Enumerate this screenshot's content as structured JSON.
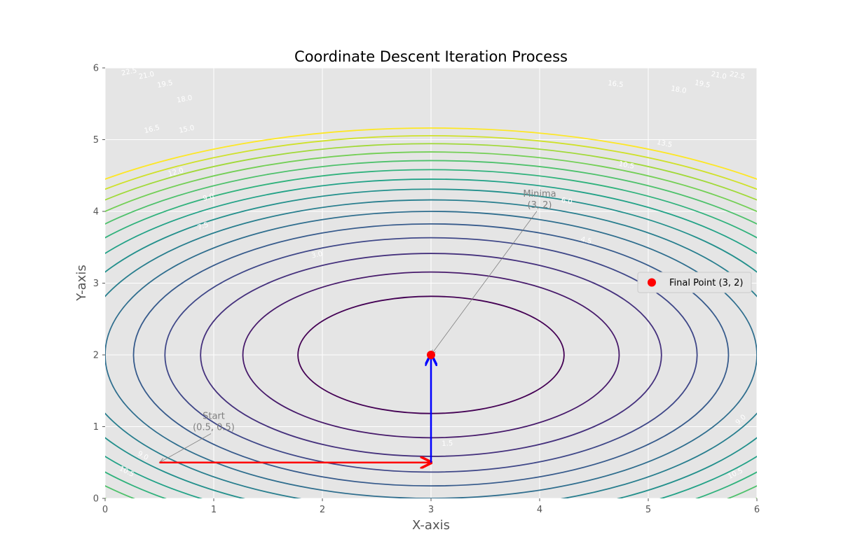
{
  "chart_data": {
    "type": "contour",
    "title": "Coordinate Descent Iteration Process",
    "xlabel": "X-axis",
    "ylabel": "Y-axis",
    "xlim": [
      0,
      6
    ],
    "ylim": [
      0,
      6
    ],
    "xticks": [
      "0",
      "1",
      "2",
      "3",
      "4",
      "5",
      "6"
    ],
    "yticks": [
      "0",
      "1",
      "2",
      "3",
      "4",
      "5",
      "6"
    ],
    "grid": true,
    "function": {
      "center": [
        3,
        2
      ],
      "x_weight": 1,
      "y_weight": 2.25
    },
    "contour_levels": [
      1.5,
      3.0,
      4.5,
      6.0,
      7.5,
      9.0,
      10.5,
      12.0,
      13.5,
      15.0,
      16.5,
      18.0,
      19.5,
      21.0,
      22.5
    ],
    "contour_labels": [
      {
        "text": "1.5",
        "x": 3.15,
        "y": 0.77
      },
      {
        "text": "3.0",
        "x": 1.95,
        "y": 3.4
      },
      {
        "text": "4.5",
        "x": 4.43,
        "y": 3.6
      },
      {
        "text": "6.0",
        "x": 4.25,
        "y": 4.15
      },
      {
        "text": "7.5",
        "x": 0.9,
        "y": 3.8
      },
      {
        "text": "9.0",
        "x": 0.95,
        "y": 4.2
      },
      {
        "text": "9.0",
        "x": 0.35,
        "y": 0.6
      },
      {
        "text": "9.0",
        "x": 5.85,
        "y": 1.1
      },
      {
        "text": "10.5",
        "x": 0.2,
        "y": 0.38
      },
      {
        "text": "10.5",
        "x": 4.8,
        "y": 4.65
      },
      {
        "text": "10.5",
        "x": 5.8,
        "y": 0.35
      },
      {
        "text": "12.0",
        "x": 0.65,
        "y": 4.55
      },
      {
        "text": "13.5",
        "x": 5.15,
        "y": 4.95
      },
      {
        "text": "15.0",
        "x": 0.75,
        "y": 5.15
      },
      {
        "text": "16.5",
        "x": 0.43,
        "y": 5.15
      },
      {
        "text": "16.5",
        "x": 4.7,
        "y": 5.78
      },
      {
        "text": "18.0",
        "x": 0.73,
        "y": 5.57
      },
      {
        "text": "18.0",
        "x": 5.28,
        "y": 5.7
      },
      {
        "text": "19.5",
        "x": 0.55,
        "y": 5.78
      },
      {
        "text": "19.5",
        "x": 5.5,
        "y": 5.78
      },
      {
        "text": "21.0",
        "x": 0.38,
        "y": 5.9
      },
      {
        "text": "21.0",
        "x": 5.65,
        "y": 5.9
      },
      {
        "text": "22.5",
        "x": 0.22,
        "y": 5.95
      },
      {
        "text": "22.5",
        "x": 5.82,
        "y": 5.9
      }
    ],
    "path": [
      {
        "from": [
          0.5,
          0.5
        ],
        "to": [
          3,
          0.5
        ],
        "color": "#ff0000",
        "step": "x-update"
      },
      {
        "from": [
          3,
          0.5
        ],
        "to": [
          3,
          2
        ],
        "color": "#0000ff",
        "step": "y-update"
      }
    ],
    "final_point": {
      "x": 3,
      "y": 2,
      "color": "#ff0000",
      "label": "Final Point (3, 2)"
    },
    "annotations": [
      {
        "lines": [
          "Start",
          "(0.5, 0.5)"
        ],
        "point": [
          0.5,
          0.5
        ],
        "text_at": [
          1.0,
          1.0
        ]
      },
      {
        "lines": [
          "Minima",
          "(3, 2)"
        ],
        "point": [
          3,
          2
        ],
        "text_at": [
          4.0,
          4.1
        ]
      }
    ],
    "legend": {
      "position": "center-right",
      "entries": [
        "Final Point (3, 2)"
      ]
    },
    "colors": {
      "plot_background": "#e5e5e5",
      "grid": "#ffffff",
      "annotation": "#808080",
      "colormap": [
        "#440154",
        "#482878",
        "#3e4989",
        "#31688e",
        "#26828e",
        "#1f9e89",
        "#35b779",
        "#6ece58",
        "#b5de2b",
        "#fde725"
      ]
    }
  }
}
